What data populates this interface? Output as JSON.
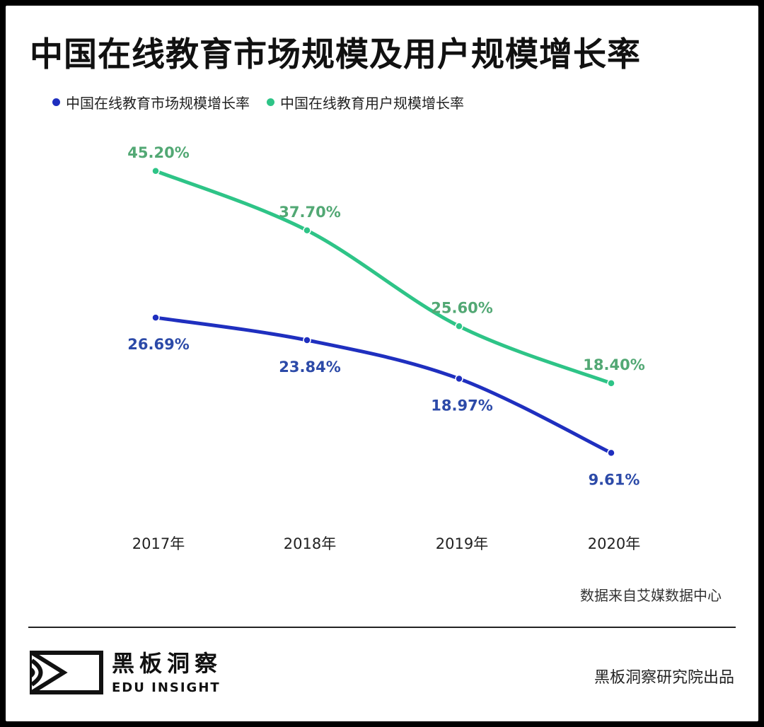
{
  "title": "中国在线教育市场规模及用户规模增长率",
  "legend": [
    {
      "label": "中国在线教育市场规模增长率",
      "color": "#1f2fbf"
    },
    {
      "label": "中国在线教育用户规模增长率",
      "color": "#2ec487"
    }
  ],
  "chart_data": {
    "type": "line",
    "categories": [
      "2017年",
      "2018年",
      "2019年",
      "2020年"
    ],
    "series": [
      {
        "name": "中国在线教育市场规模增长率",
        "values": [
          26.69,
          23.84,
          18.97,
          9.61
        ],
        "labels": [
          "26.69%",
          "23.84%",
          "18.97%",
          "9.61%"
        ],
        "color": "#1f2fbf",
        "label_color": "#2c4aa8"
      },
      {
        "name": "中国在线教育用户规模增长率",
        "values": [
          45.2,
          37.7,
          25.6,
          18.4
        ],
        "labels": [
          "45.20%",
          "37.70%",
          "25.60%",
          "18.40%"
        ],
        "color": "#2ec487",
        "label_color": "#52a874"
      }
    ],
    "ylim": [
      5,
      50
    ],
    "grid": false,
    "legend_position": "top-left",
    "smooth": true
  },
  "source_note": "数据来自艾媒数据中心",
  "brand": {
    "name_cn": "黑板洞察",
    "name_en": "EDU INSIGHT",
    "logo": "eye-frame-logo"
  },
  "credit": "黑板洞察研究院出品"
}
